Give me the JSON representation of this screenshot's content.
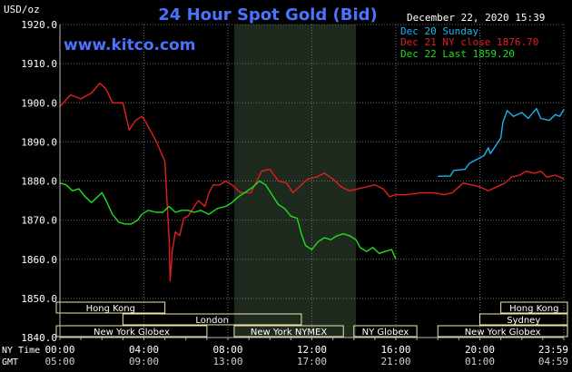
{
  "chart_data": {
    "type": "line",
    "title": "24 Hour Spot Gold (Bid)",
    "watermark": "www.kitco.com",
    "date_label": "December 22, 2020 15:39",
    "y_unit_label": "USD/oz",
    "ylim": [
      1840,
      1920
    ],
    "y_ticks": [
      "1920.0",
      "1910.0",
      "1900.0",
      "1890.0",
      "1880.0",
      "1870.0",
      "1860.0",
      "1850.0",
      "1840.0"
    ],
    "x_range_hours": [
      0,
      24
    ],
    "ny_row_label": "NY Time",
    "gmt_row_label": "GMT",
    "x_ticks_ny": [
      "00:00",
      "04:00",
      "08:00",
      "12:00",
      "16:00",
      "20:00",
      "23:59"
    ],
    "x_ticks_gmt": [
      "05:00",
      "09:00",
      "13:00",
      "17:00",
      "21:00",
      "01:00",
      "04:59"
    ],
    "grid": true,
    "legend_position": "top-right",
    "shaded_band_hours": [
      8.3,
      14.1
    ],
    "colors": {
      "background": "#000000",
      "grid": "#6a6a6a",
      "axis_text": "#ffffff",
      "title": "#4a73ff",
      "band": "#1f2a1f",
      "market_box": "#f0e6a8",
      "market_text": "#ffffff"
    },
    "series": [
      {
        "name": "Dec 20 Sunday",
        "color": "#1ab2f2",
        "points": [
          [
            18.0,
            1881.2
          ],
          [
            18.6,
            1881.3
          ],
          [
            18.75,
            1882.7
          ],
          [
            19.3,
            1883.0
          ],
          [
            19.5,
            1884.5
          ],
          [
            20.2,
            1886.5
          ],
          [
            20.4,
            1888.5
          ],
          [
            20.5,
            1887.0
          ],
          [
            21.0,
            1891.0
          ],
          [
            21.1,
            1895.0
          ],
          [
            21.3,
            1898.0
          ],
          [
            21.6,
            1896.5
          ],
          [
            22.0,
            1897.5
          ],
          [
            22.3,
            1896.0
          ],
          [
            22.7,
            1898.5
          ],
          [
            22.9,
            1896.0
          ],
          [
            23.3,
            1895.5
          ],
          [
            23.6,
            1897.0
          ],
          [
            23.8,
            1896.5
          ],
          [
            24.0,
            1898.3
          ]
        ]
      },
      {
        "name": "Dec 21 NY close 1876.70",
        "color": "#e02020",
        "points": [
          [
            0.0,
            1899.0
          ],
          [
            0.5,
            1902.0
          ],
          [
            1.0,
            1901.0
          ],
          [
            1.5,
            1902.5
          ],
          [
            1.9,
            1905.0
          ],
          [
            2.2,
            1903.5
          ],
          [
            2.5,
            1900.0
          ],
          [
            3.0,
            1900.0
          ],
          [
            3.3,
            1893.0
          ],
          [
            3.6,
            1895.5
          ],
          [
            3.9,
            1896.5
          ],
          [
            4.1,
            1895.0
          ],
          [
            4.3,
            1893.0
          ],
          [
            4.6,
            1890.0
          ],
          [
            4.8,
            1887.5
          ],
          [
            5.0,
            1885.0
          ],
          [
            5.1,
            1875.0
          ],
          [
            5.2,
            1865.0
          ],
          [
            5.25,
            1854.5
          ],
          [
            5.35,
            1862.0
          ],
          [
            5.5,
            1867.0
          ],
          [
            5.7,
            1866.0
          ],
          [
            5.9,
            1870.5
          ],
          [
            6.1,
            1871.0
          ],
          [
            6.4,
            1873.5
          ],
          [
            6.6,
            1875.0
          ],
          [
            6.9,
            1873.5
          ],
          [
            7.1,
            1877.0
          ],
          [
            7.3,
            1879.0
          ],
          [
            7.6,
            1879.0
          ],
          [
            7.9,
            1880.0
          ],
          [
            8.2,
            1879.0
          ],
          [
            8.6,
            1877.0
          ],
          [
            9.1,
            1877.0
          ],
          [
            9.6,
            1882.5
          ],
          [
            10.0,
            1883.0
          ],
          [
            10.4,
            1880.0
          ],
          [
            10.8,
            1879.5
          ],
          [
            11.1,
            1877.0
          ],
          [
            11.4,
            1878.5
          ],
          [
            11.8,
            1880.5
          ],
          [
            12.2,
            1881.0
          ],
          [
            12.6,
            1882.0
          ],
          [
            13.0,
            1880.5
          ],
          [
            13.4,
            1878.5
          ],
          [
            13.8,
            1877.5
          ],
          [
            14.2,
            1878.0
          ],
          [
            14.6,
            1878.5
          ],
          [
            15.0,
            1879.0
          ],
          [
            15.4,
            1878.0
          ],
          [
            15.7,
            1876.0
          ],
          [
            16.0,
            1876.5
          ],
          [
            16.5,
            1876.5
          ],
          [
            17.2,
            1877.0
          ],
          [
            17.8,
            1877.0
          ],
          [
            18.3,
            1876.5
          ],
          [
            18.7,
            1877.0
          ],
          [
            19.2,
            1879.5
          ],
          [
            19.6,
            1879.0
          ],
          [
            20.0,
            1878.5
          ],
          [
            20.4,
            1877.5
          ],
          [
            20.8,
            1878.5
          ],
          [
            21.2,
            1879.5
          ],
          [
            21.5,
            1881.0
          ],
          [
            21.9,
            1881.5
          ],
          [
            22.2,
            1882.5
          ],
          [
            22.6,
            1882.0
          ],
          [
            22.9,
            1882.5
          ],
          [
            23.2,
            1881.0
          ],
          [
            23.6,
            1881.5
          ],
          [
            24.0,
            1880.5
          ]
        ]
      },
      {
        "name": "Dec 22 Last 1859.20",
        "color": "#1ee01e",
        "points": [
          [
            0.0,
            1879.5
          ],
          [
            0.3,
            1879.0
          ],
          [
            0.6,
            1877.5
          ],
          [
            0.9,
            1878.0
          ],
          [
            1.2,
            1876.0
          ],
          [
            1.5,
            1874.5
          ],
          [
            1.8,
            1876.0
          ],
          [
            2.0,
            1877.0
          ],
          [
            2.2,
            1875.0
          ],
          [
            2.5,
            1871.5
          ],
          [
            2.8,
            1869.5
          ],
          [
            3.1,
            1869.0
          ],
          [
            3.4,
            1869.0
          ],
          [
            3.7,
            1870.0
          ],
          [
            3.9,
            1871.5
          ],
          [
            4.2,
            1872.5
          ],
          [
            4.6,
            1872.0
          ],
          [
            4.9,
            1872.0
          ],
          [
            5.2,
            1873.5
          ],
          [
            5.5,
            1872.0
          ],
          [
            5.8,
            1872.5
          ],
          [
            6.1,
            1872.5
          ],
          [
            6.4,
            1872.0
          ],
          [
            6.7,
            1872.5
          ],
          [
            7.1,
            1871.5
          ],
          [
            7.5,
            1873.0
          ],
          [
            7.9,
            1873.5
          ],
          [
            8.2,
            1874.5
          ],
          [
            8.5,
            1876.0
          ],
          [
            8.8,
            1877.0
          ],
          [
            9.2,
            1878.5
          ],
          [
            9.5,
            1880.0
          ],
          [
            9.8,
            1879.0
          ],
          [
            10.1,
            1876.5
          ],
          [
            10.4,
            1874.0
          ],
          [
            10.7,
            1873.0
          ],
          [
            11.0,
            1871.0
          ],
          [
            11.3,
            1870.5
          ],
          [
            11.5,
            1866.5
          ],
          [
            11.7,
            1863.5
          ],
          [
            12.0,
            1862.5
          ],
          [
            12.3,
            1864.5
          ],
          [
            12.6,
            1865.5
          ],
          [
            12.9,
            1865.0
          ],
          [
            13.2,
            1866.0
          ],
          [
            13.5,
            1866.5
          ],
          [
            13.8,
            1866.0
          ],
          [
            14.1,
            1865.0
          ],
          [
            14.3,
            1863.0
          ],
          [
            14.6,
            1862.0
          ],
          [
            14.9,
            1863.0
          ],
          [
            15.2,
            1861.5
          ],
          [
            15.5,
            1862.0
          ],
          [
            15.8,
            1862.5
          ],
          [
            16.0,
            1860.0
          ]
        ]
      }
    ],
    "market_rows": {
      "row1": [
        {
          "label": "Hong Kong",
          "start": -1.0,
          "end": 5.0
        },
        {
          "label": "Hong Kong",
          "start": 21.0,
          "end": 25.0
        }
      ],
      "row2": [
        {
          "label": "London",
          "start": 3.0,
          "end": 11.5
        },
        {
          "label": "Sydney",
          "start": 20.0,
          "end": 25.0
        }
      ],
      "row3": [
        {
          "label": "New York Globex",
          "start": -1.0,
          "end": 7.0
        },
        {
          "label": "New York NYMEX",
          "start": 8.3,
          "end": 13.5
        },
        {
          "label": "NY Globex",
          "start": 14.0,
          "end": 17.0
        },
        {
          "label": "New York Globex",
          "start": 18.0,
          "end": 25.0
        }
      ]
    }
  }
}
